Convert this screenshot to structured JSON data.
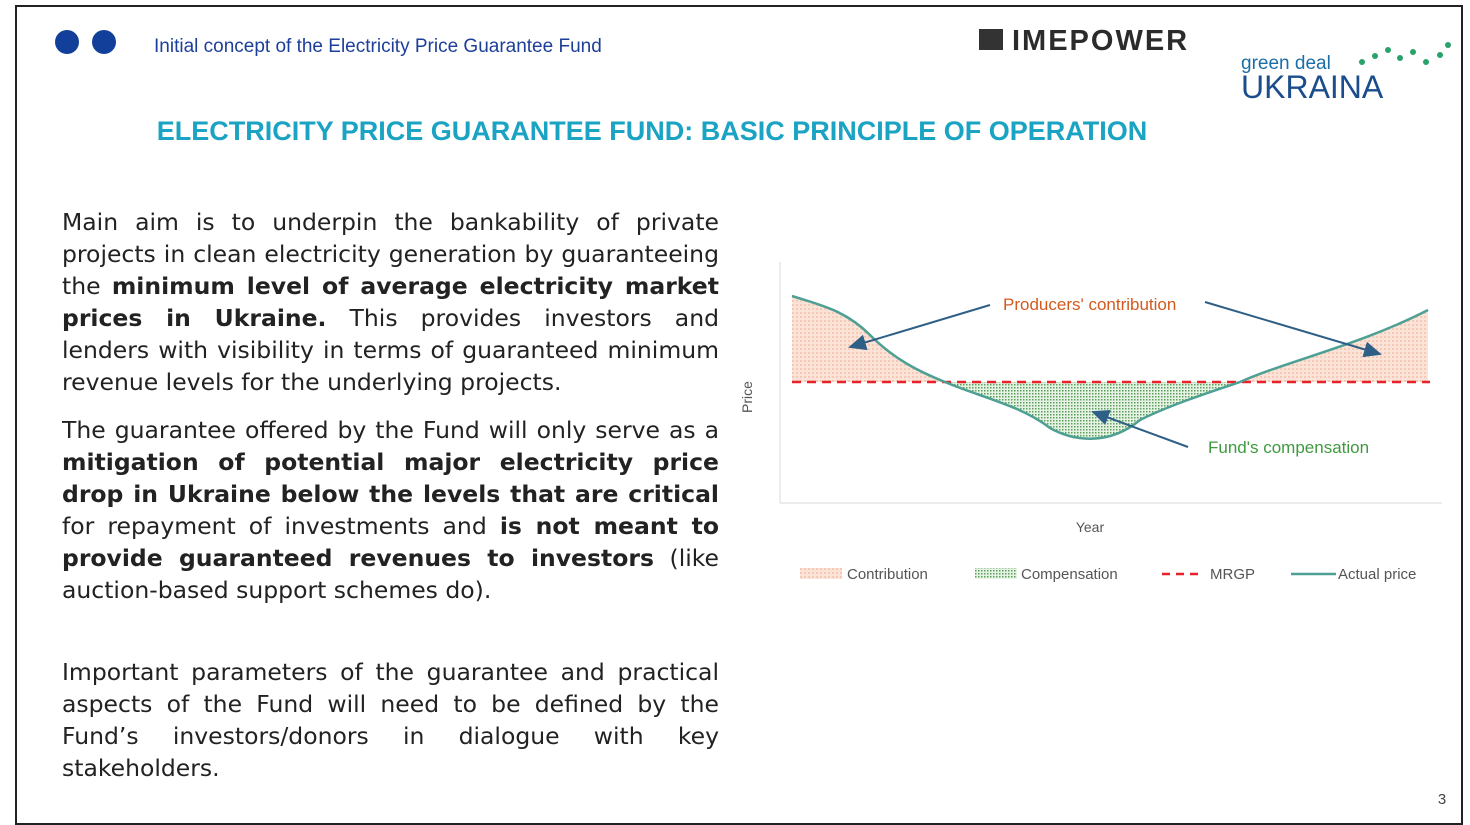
{
  "header": {
    "subtitle": "Initial concept of the Electricity Price Guarantee Fund",
    "logo_imepower": "IMEPOWER",
    "logo_green_deal": "green deal",
    "logo_ukraina": "UKRAINA"
  },
  "title": "ELECTRICITY PRICE GUARANTEE FUND: BASIC PRINCIPLE OF OPERATION",
  "paragraphs": [
    [
      {
        "text": "Main aim is to underpin the bankability of private projects in clean electricity generation by guaranteeing the ",
        "bold": false
      },
      {
        "text": "minimum level of average electricity market prices in Ukraine.",
        "bold": true
      },
      {
        "text": " This provides investors and lenders with visibility in terms of guaranteed minimum revenue levels for the underlying projects.",
        "bold": false
      }
    ],
    [
      {
        "text": "The guarantee offered by the Fund will only serve as a ",
        "bold": false
      },
      {
        "text": "mitigation of potential major electricity price drop in Ukraine below the levels that are critical",
        "bold": true
      },
      {
        "text": " for repayment of investments and ",
        "bold": false
      },
      {
        "text": "is not meant to provide guaranteed revenues to investors",
        "bold": true
      },
      {
        "text": " (like auction-based support schemes do).",
        "bold": false
      }
    ],
    [
      {
        "text": "Important parameters of the guarantee and practical aspects of the Fund will need to be defined by the Fund’s investors/donors in dialogue with key stakeholders.",
        "bold": false
      }
    ]
  ],
  "diagram": {
    "annotation_contribution": "Producers' contribution",
    "annotation_compensation": "Fund's compensation",
    "y_label": "Price",
    "x_label": "Year",
    "legend": [
      "Contribution",
      "Compensation",
      "MRGP",
      "Actual price"
    ]
  },
  "page_number": "3"
}
